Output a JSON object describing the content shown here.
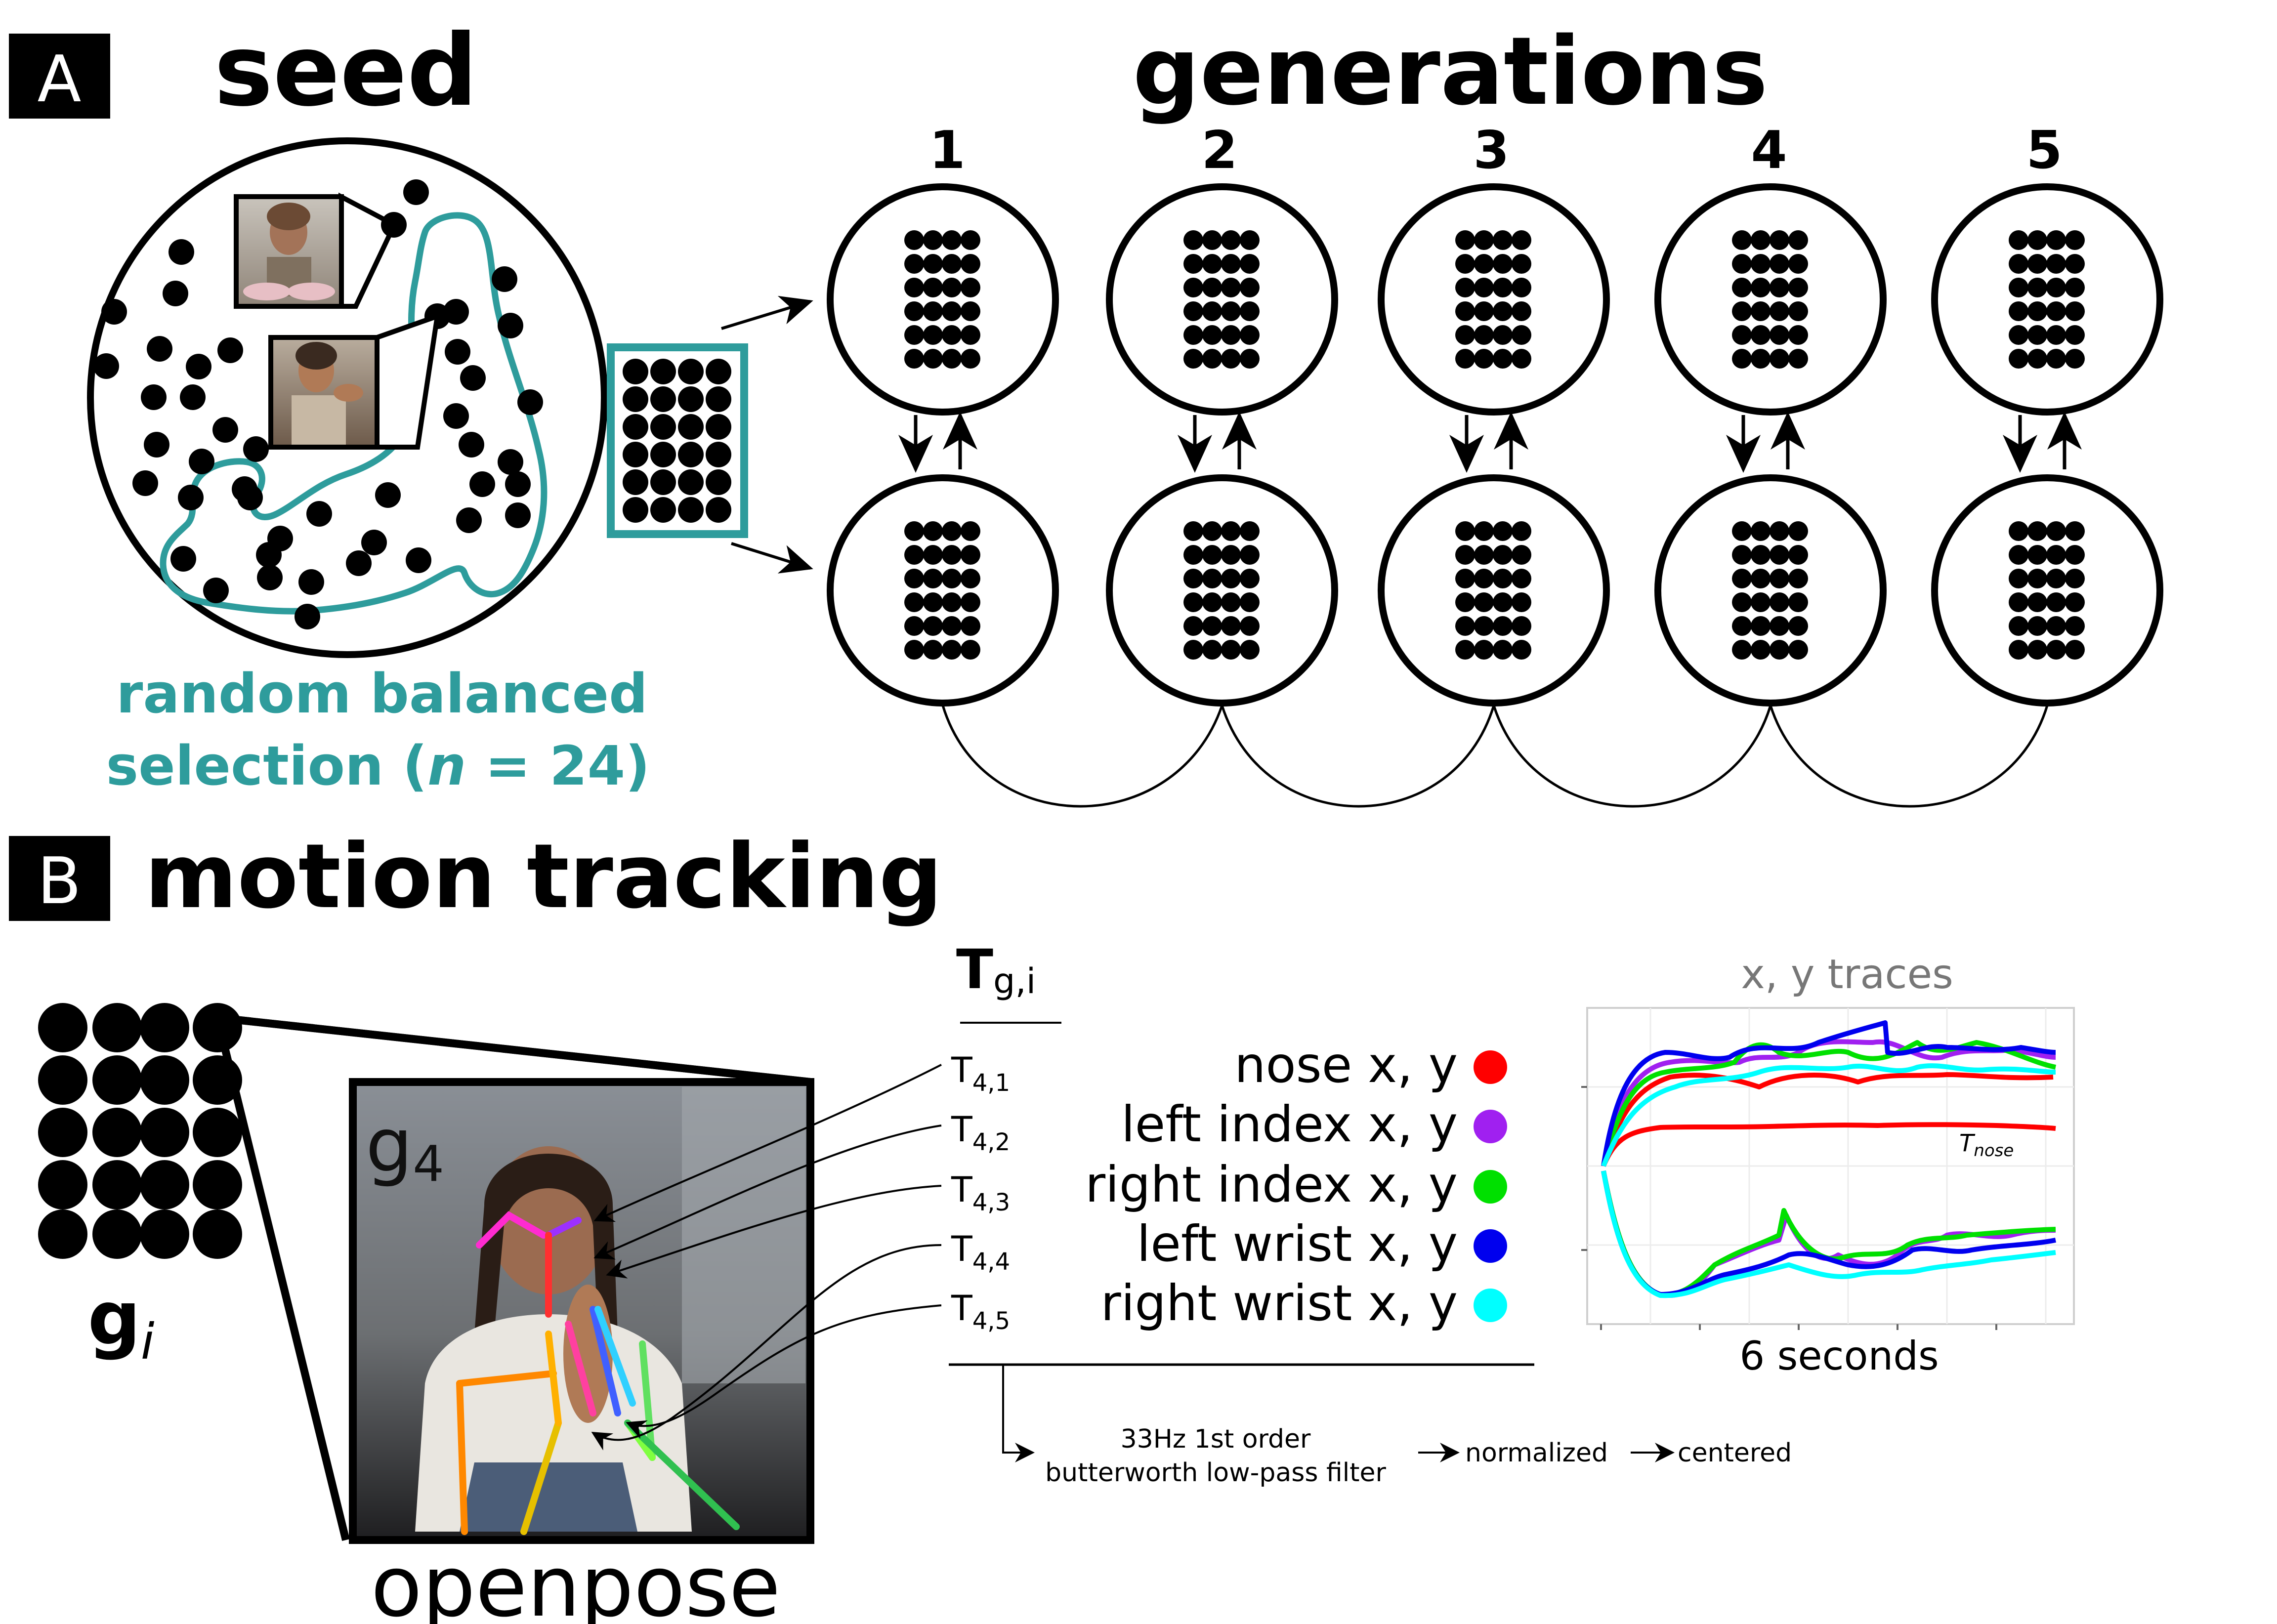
{
  "panel_a": {
    "label": "A",
    "seed_title": "seed",
    "generations_title": "generations",
    "generation_numbers": [
      "1",
      "2",
      "3",
      "4",
      "5"
    ],
    "selection_line1": "random balanced",
    "selection_line2_prefix": "selection (",
    "selection_n": "n",
    "selection_line2_suffix": " = 24)"
  },
  "panel_b": {
    "label": "B",
    "title": "motion tracking",
    "g_main": "g",
    "g_sub": "i",
    "g4_main": "g",
    "g4_sub": "4",
    "openpose_label": "openpose",
    "t_header_main": "T",
    "t_header_sub": "g,i",
    "traces": [
      {
        "t_main": "T",
        "t_sub": "4,1",
        "label": "nose x, y",
        "color": "#ff0000"
      },
      {
        "t_main": "T",
        "t_sub": "4,2",
        "label": "left index x, y",
        "color": "#a020f0"
      },
      {
        "t_main": "T",
        "t_sub": "4,3",
        "label": "right index x, y",
        "color": "#00e000"
      },
      {
        "t_main": "T",
        "t_sub": "4,4",
        "label": "left wrist x, y",
        "color": "#0000ee"
      },
      {
        "t_main": "T",
        "t_sub": "4,5",
        "label": "right wrist x, y",
        "color": "#00ffff"
      }
    ],
    "pipeline": {
      "filter_line1": "33Hz 1st order",
      "filter_line2": "butterworth low-pass filter",
      "normalized": "normalized",
      "centered": "centered"
    },
    "plot": {
      "title": "x, y traces",
      "xlabel": "6 seconds",
      "t_nose_main": "T",
      "t_nose_sub": "nose"
    }
  },
  "colors": {
    "teal": "#2e9c9c",
    "black": "#000000",
    "grey_title": "#777777"
  }
}
